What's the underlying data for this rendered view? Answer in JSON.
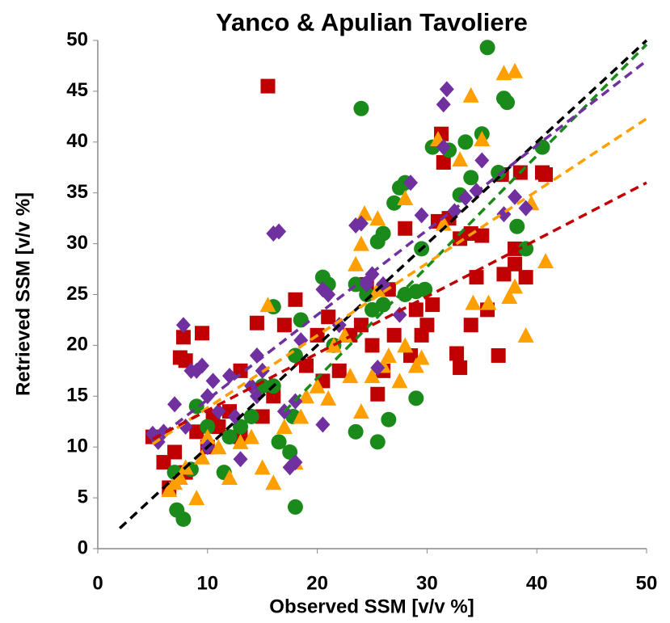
{
  "chart_data": {
    "type": "scatter",
    "title": "Yanco & Apulian Tavoliere",
    "x_label": "Observed SSM [v/v %]",
    "y_label": "Retrieved SSM [v/v %]",
    "xlim": [
      0,
      50
    ],
    "ylim": [
      0,
      50
    ],
    "xticks": [
      0,
      10,
      20,
      30,
      40,
      50
    ],
    "yticks": [
      0,
      5,
      10,
      15,
      20,
      25,
      30,
      35,
      40,
      45,
      50
    ],
    "series": [
      {
        "color": "#c00000",
        "marker": "square",
        "x": [
          15.5,
          5,
          6,
          6.5,
          7,
          7.5,
          7.8,
          8,
          9.5,
          9,
          10,
          11,
          12,
          13,
          14.5,
          15,
          16,
          17,
          18,
          19,
          20,
          21,
          22,
          23,
          24,
          25,
          25.5,
          26,
          27,
          28,
          28.5,
          29,
          29.5,
          30,
          30.5,
          31,
          31.3,
          31.5,
          32,
          32.7,
          33,
          33,
          34,
          34.5,
          34,
          35,
          35.5,
          36.5,
          36.8,
          37,
          38,
          38,
          38.5,
          39,
          40.5,
          40.8,
          24.5,
          26.5,
          20.5,
          13,
          10.5,
          8
        ],
        "y": [
          45.5,
          11,
          8.5,
          6,
          9.5,
          18.8,
          20.8,
          18.5,
          21.2,
          11.5,
          10,
          12,
          13.5,
          17.5,
          22.2,
          13,
          15,
          22,
          24.5,
          18,
          21,
          22.8,
          17.5,
          21,
          22,
          20,
          15.2,
          17.5,
          21,
          31.5,
          19,
          23.5,
          21,
          22,
          24,
          32.2,
          40.8,
          38,
          32.5,
          19.2,
          17.8,
          30.5,
          22,
          26.7,
          31,
          30.8,
          23.5,
          19,
          36.8,
          27,
          29.5,
          28,
          37,
          26.7,
          37,
          36.8,
          26,
          25.5,
          16.5,
          11,
          13,
          7.5
        ]
      },
      {
        "color": "#1a8a1a",
        "marker": "circle",
        "x": [
          7.2,
          7.8,
          7,
          8.5,
          9,
          10,
          11.5,
          12,
          13,
          14,
          15,
          16,
          16.5,
          17.5,
          18,
          18,
          18.5,
          17.8,
          20.5,
          21,
          23.5,
          24,
          23.5,
          24.5,
          25,
          25.5,
          25.5,
          26,
          26.5,
          26,
          27,
          27.5,
          28,
          28,
          29,
          29.5,
          29,
          29.8,
          30.5,
          32,
          33,
          33.5,
          34,
          35,
          35.5,
          37,
          37.3,
          38.2,
          39,
          40.5,
          36.5,
          21.5,
          16
        ],
        "y": [
          3.8,
          2.9,
          7.5,
          7.8,
          14,
          12,
          7.5,
          11,
          12,
          13,
          16,
          23.8,
          10.5,
          9.5,
          4.1,
          19,
          22.5,
          13,
          26.7,
          26,
          11.5,
          43.3,
          26,
          25,
          23.5,
          10.5,
          30.2,
          24,
          12.7,
          31,
          34,
          35.5,
          36,
          25,
          14.8,
          29.5,
          25.3,
          25.5,
          39.5,
          39.2,
          34.8,
          40,
          36.5,
          40.8,
          49.3,
          44.3,
          43.9,
          31.7,
          29.5,
          39.5,
          37,
          20,
          16
        ]
      },
      {
        "color": "#ffa000",
        "marker": "triangle",
        "x": [
          6.5,
          7,
          7.5,
          8,
          9,
          9.5,
          10,
          11,
          12,
          13,
          14,
          15,
          15.5,
          16,
          17,
          18,
          18.5,
          19,
          20,
          21,
          21.5,
          23,
          24,
          24,
          24.3,
          25,
          25.5,
          25.5,
          26,
          26.5,
          27.5,
          28,
          28,
          29,
          29.5,
          31,
          31.5,
          33,
          34,
          34.2,
          35,
          35.6,
          37,
          37.5,
          38,
          38,
          39,
          40.8,
          39.5,
          23.5,
          22.5
        ],
        "y": [
          5.8,
          6.5,
          7,
          8,
          5,
          9,
          11,
          10,
          7,
          10.5,
          11,
          8,
          24,
          6.5,
          12,
          8.5,
          13,
          15,
          16,
          14.8,
          20,
          17,
          13.5,
          30,
          33,
          17,
          25.5,
          32.5,
          18,
          19,
          16.5,
          20,
          34.5,
          18,
          18.8,
          40.3,
          32,
          38.3,
          44.6,
          24.2,
          40.3,
          24.2,
          46.8,
          24.8,
          47,
          25.8,
          21,
          28.3,
          34,
          28,
          21
        ]
      },
      {
        "color": "#7030a0",
        "marker": "diamond",
        "x": [
          5,
          6,
          7,
          7.8,
          8,
          8.5,
          9,
          9.5,
          10,
          10.5,
          11,
          12,
          12.5,
          13,
          14,
          14.5,
          15,
          16,
          16.5,
          17,
          17.5,
          18,
          18,
          18.5,
          20.5,
          20.5,
          21,
          22,
          23.5,
          24,
          24.5,
          25,
          25.5,
          26,
          27.5,
          28.5,
          29.5,
          31.5,
          31.5,
          31.8,
          32.5,
          33.5,
          34.5,
          35,
          37,
          38,
          39,
          5.5,
          10,
          14.5
        ],
        "y": [
          11.3,
          11.5,
          14.2,
          22,
          12,
          17.5,
          17.5,
          18,
          15,
          16.5,
          13.5,
          17,
          13,
          8.8,
          16,
          19,
          17.5,
          31,
          31.2,
          13.5,
          8,
          14.5,
          8.5,
          20.5,
          12.2,
          25.5,
          25,
          22,
          31.8,
          32,
          26,
          27,
          17.8,
          26,
          23,
          36,
          32.8,
          39.5,
          43.7,
          45.2,
          33.2,
          34.5,
          35.2,
          38.2,
          32.9,
          34.6,
          33.5,
          10.5,
          10,
          15
        ]
      }
    ],
    "trendlines": [
      {
        "color": "#000000",
        "x": [
          2,
          50
        ],
        "y": [
          2,
          50
        ]
      },
      {
        "color": "#1a8a1a",
        "x": [
          17,
          50
        ],
        "y": [
          13.5,
          49.6
        ]
      },
      {
        "color": "#7030a0",
        "x": [
          5,
          50
        ],
        "y": [
          10.5,
          48
        ]
      },
      {
        "color": "#ffa000",
        "x": [
          5,
          50
        ],
        "y": [
          10.3,
          42.3
        ]
      },
      {
        "color": "#c00000",
        "x": [
          5,
          50
        ],
        "y": [
          10.8,
          36
        ]
      }
    ]
  }
}
